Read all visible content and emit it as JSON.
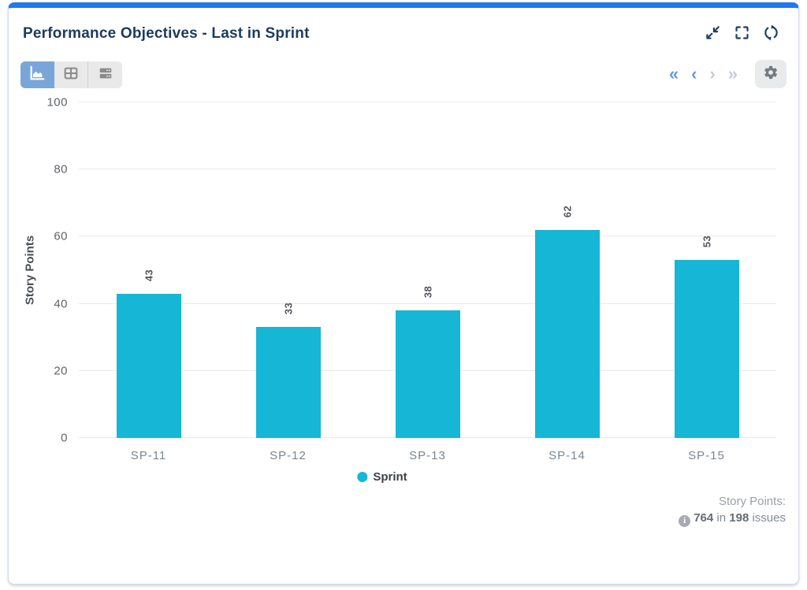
{
  "header": {
    "title": "Performance Objectives - Last in Sprint",
    "icons": [
      "collapse",
      "fullscreen",
      "refresh"
    ]
  },
  "toolbar": {
    "views": [
      "chart",
      "table",
      "list"
    ],
    "active": "chart"
  },
  "pagination": {
    "first": "«",
    "prev": "‹",
    "next": "›",
    "last": "»",
    "enabled": [
      "first",
      "prev"
    ],
    "settings_icon": "gear"
  },
  "chart_data": {
    "type": "bar",
    "categories": [
      "SP-11",
      "SP-12",
      "SP-13",
      "SP-14",
      "SP-15"
    ],
    "series": [
      {
        "name": "Sprint",
        "values": [
          43,
          33,
          38,
          62,
          53
        ],
        "color": "#15b6d6"
      }
    ],
    "title": "",
    "xlabel": "",
    "ylabel": "Story Points",
    "ylim": [
      0,
      100
    ],
    "yticks": [
      0,
      20,
      40,
      60,
      80,
      100
    ],
    "grid": true,
    "legend_position": "bottom-center",
    "value_labels": "rotated-90"
  },
  "footer": {
    "label": "Story Points:",
    "total": "764",
    "conjunction": "in",
    "count": "198",
    "suffix": "issues",
    "info_icon": "info-circle"
  },
  "colors": {
    "accent_top_bar": "#2277f2",
    "bar": "#15b6d6",
    "title_text": "#1d3a5e",
    "active_view_bg": "#79a5d9",
    "pager_active": "#6a95e0",
    "pager_disabled": "#c6ccd4"
  }
}
